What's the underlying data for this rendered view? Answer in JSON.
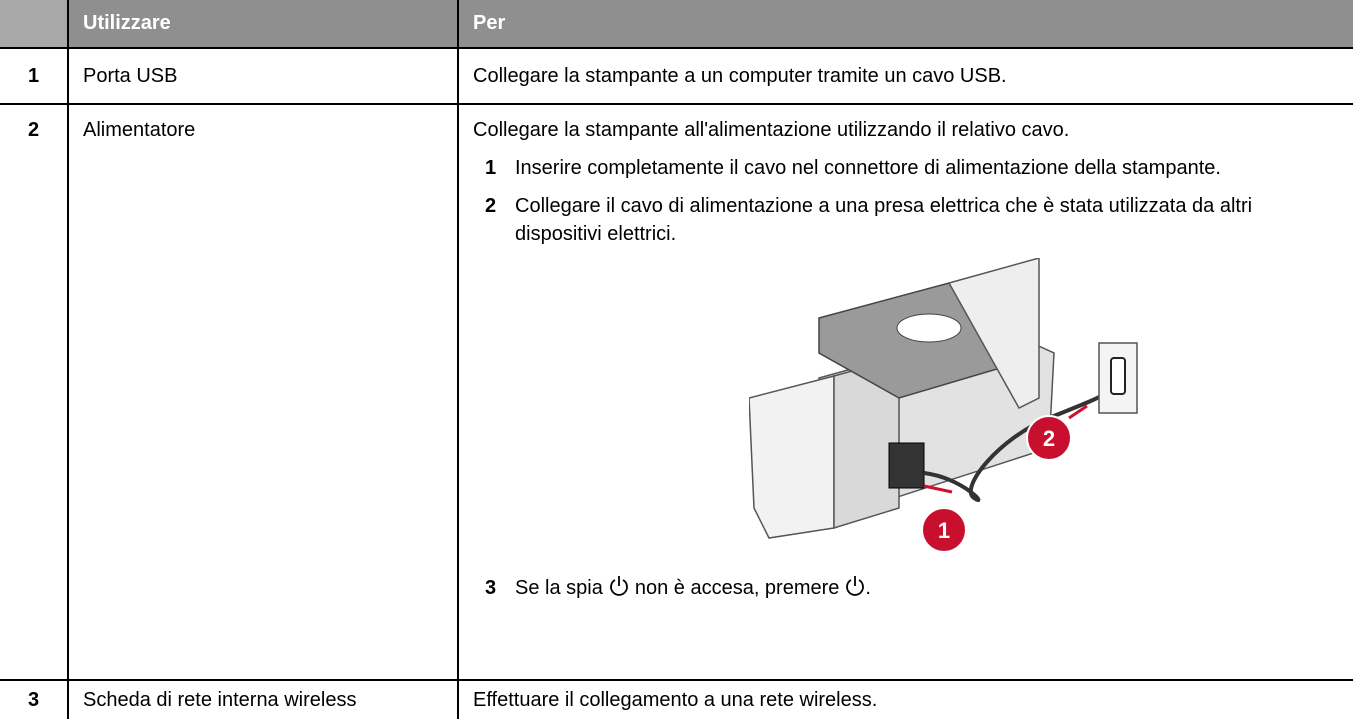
{
  "table": {
    "headers": [
      "Utilizzare",
      "Per"
    ],
    "rows": [
      {
        "number": "1",
        "item": "Porta USB",
        "description": "Collegare la stampante a un computer tramite un cavo USB."
      },
      {
        "number": "2",
        "item": "Alimentatore",
        "description": "Collegare la stampante all'alimentazione utilizzando il relativo cavo.",
        "steps": [
          {
            "number": "1",
            "text": "Inserire completamente il cavo nel connettore di alimentazione della stampante."
          },
          {
            "number": "2",
            "text": "Collegare il cavo di alimentazione a una presa elettrica che è stata utilizzata da altri dispositivi elettrici."
          },
          {
            "number": "3",
            "text_parts": [
              "Se la spia",
              "non è accesa, premere",
              "."
            ]
          }
        ],
        "illustration_callouts": [
          "1",
          "2"
        ]
      },
      {
        "number": "3",
        "item": "Scheda di rete interna wireless",
        "description": "Effettuare il collegamento a una rete wireless."
      }
    ]
  }
}
